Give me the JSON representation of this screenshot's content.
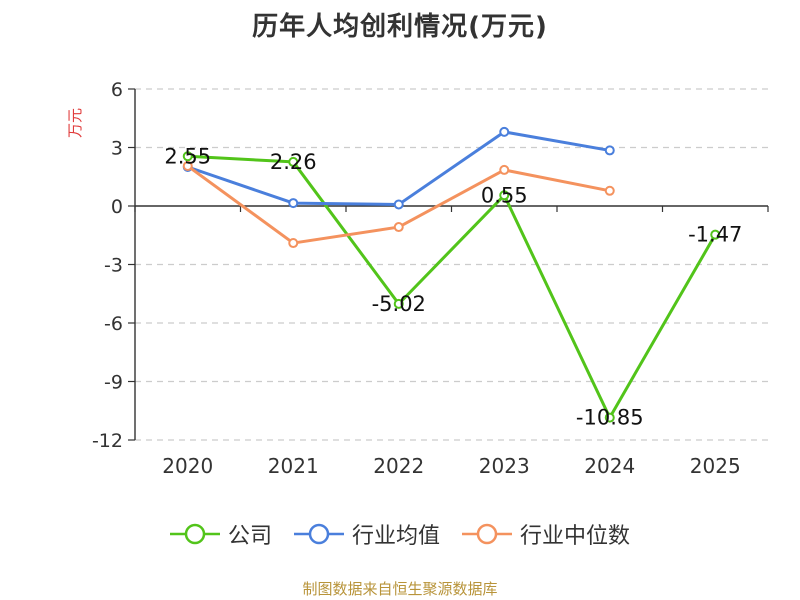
{
  "chart_data": {
    "type": "line",
    "title": "历年人均创利情况(万元)",
    "ylabel": "万元",
    "xlabel": "",
    "categories": [
      "2020",
      "2021",
      "2022",
      "2023",
      "2024",
      "2025"
    ],
    "ylim": [
      -12,
      6
    ],
    "yticks": [
      6,
      3,
      0,
      -3,
      -6,
      -9,
      -12
    ],
    "grid": true,
    "legend_position": "bottom",
    "series": [
      {
        "name": "公司",
        "color": "#52c41a",
        "values": [
          2.55,
          2.26,
          -5.02,
          0.55,
          -10.85,
          -1.47
        ],
        "data_labels": [
          "2.55",
          "2.26",
          "-5.02",
          "0.55",
          "-10.85",
          "-1.47"
        ]
      },
      {
        "name": "行业均值",
        "color": "#4a7fdc",
        "values": [
          2.0,
          0.15,
          0.08,
          3.8,
          2.85,
          null
        ]
      },
      {
        "name": "行业中位数",
        "color": "#f4925e",
        "values": [
          2.05,
          -1.9,
          -1.08,
          1.85,
          0.78,
          null
        ]
      }
    ]
  },
  "source": "制图数据来自恒生聚源数据库"
}
